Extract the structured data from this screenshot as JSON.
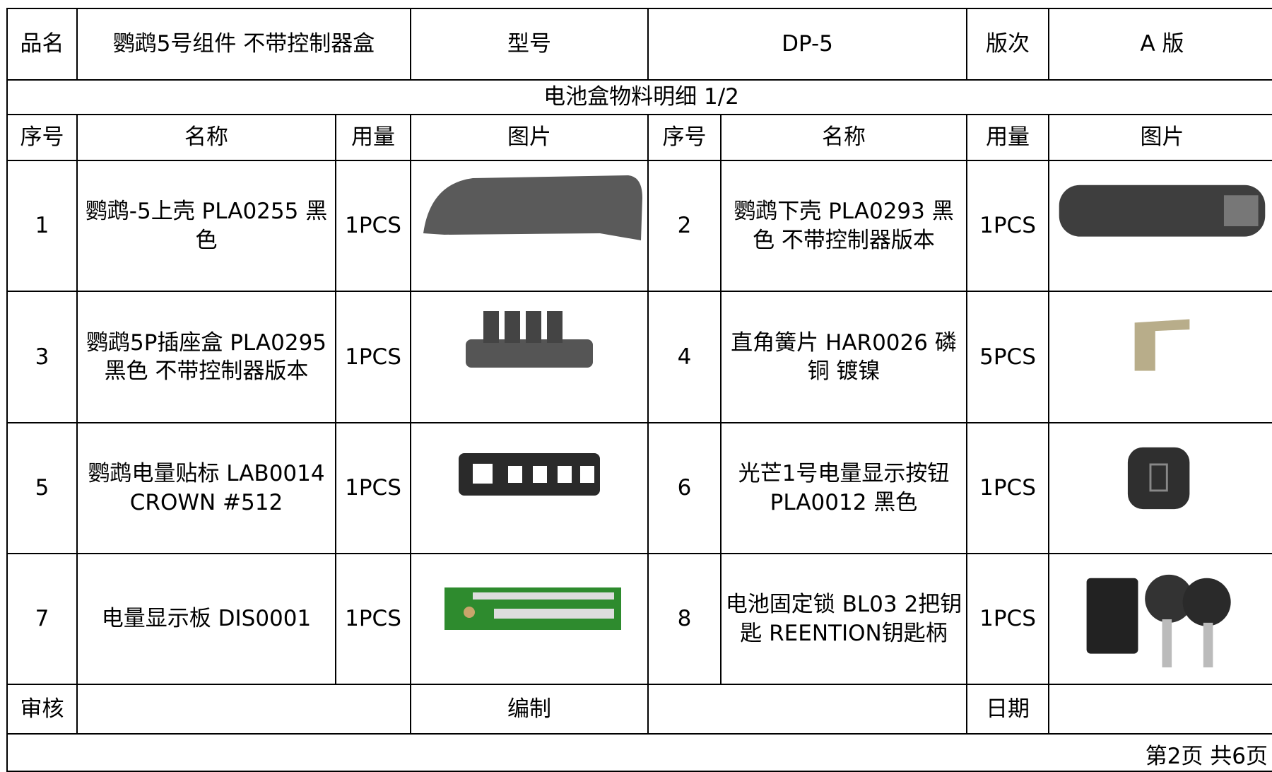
{
  "header": {
    "cells": [
      "品名",
      "鹦鹉5号组件 不带控制器盒",
      "型号",
      "DP-5",
      "版次",
      "A 版"
    ]
  },
  "section_title": "电池盒物料明细 1/2",
  "columns": [
    "序号",
    "名称",
    "用量",
    "图片",
    "序号",
    "名称",
    "用量",
    "图片"
  ],
  "items": [
    {
      "no": "1",
      "name": "鹦鹉-5上壳 PLA0255 黑色",
      "qty": "1PCS"
    },
    {
      "no": "2",
      "name": "鹦鹉下壳 PLA0293 黑色 不带控制器版本",
      "qty": "1PCS"
    },
    {
      "no": "3",
      "name": "鹦鹉5P插座盒 PLA0295 黑色 不带控制器版本",
      "qty": "1PCS"
    },
    {
      "no": "4",
      "name": "直角簧片 HAR0026 磷铜 镀镍",
      "qty": "5PCS"
    },
    {
      "no": "5",
      "name": "鹦鹉电量贴标 LAB0014 CROWN #512",
      "qty": "1PCS"
    },
    {
      "no": "6",
      "name": "光芒1号电量显示按钮 PLA0012 黑色",
      "qty": "1PCS"
    },
    {
      "no": "7",
      "name": "电量显示板 DIS0001",
      "qty": "1PCS"
    },
    {
      "no": "8",
      "name": "电池固定锁 BL03 2把钥匙 REENTION钥匙柄",
      "qty": "1PCS"
    }
  ],
  "footer": [
    "审核",
    "编制",
    "日期"
  ],
  "page_note": "第2页 共6页"
}
